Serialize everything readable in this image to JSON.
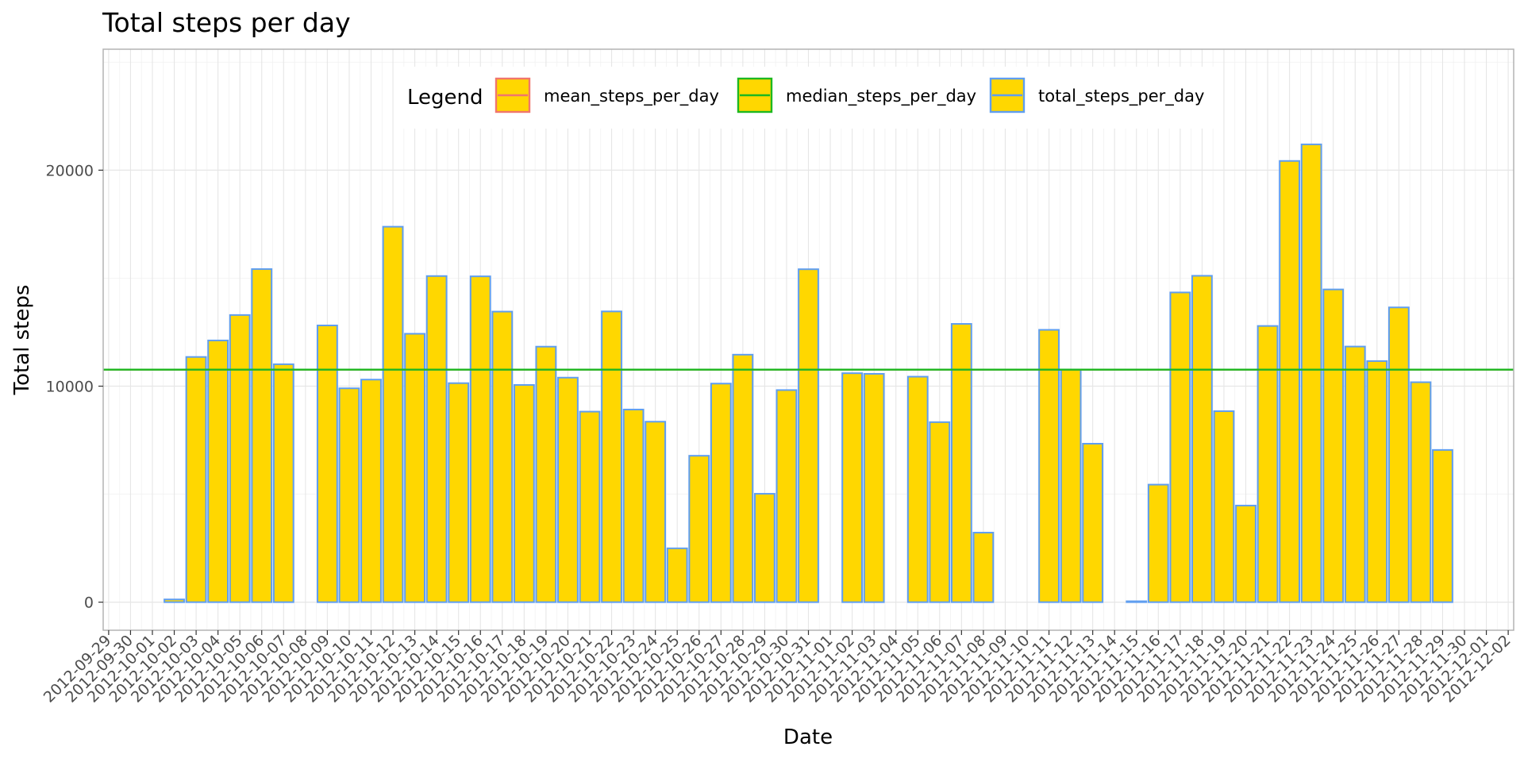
{
  "chart_data": {
    "type": "bar",
    "title": "Total steps per day",
    "xlabel": "Date",
    "ylabel": "Total steps",
    "ylim": [
      -1300,
      25600
    ],
    "yticks": [
      0,
      10000,
      20000
    ],
    "grid": true,
    "legend_position": "top",
    "x_tick_labels": [
      "2012-09-29",
      "2012-09-30",
      "2012-10-01",
      "2012-10-02",
      "2012-10-03",
      "2012-10-04",
      "2012-10-05",
      "2012-10-06",
      "2012-10-07",
      "2012-10-08",
      "2012-10-09",
      "2012-10-10",
      "2012-10-11",
      "2012-10-12",
      "2012-10-13",
      "2012-10-14",
      "2012-10-15",
      "2012-10-16",
      "2012-10-17",
      "2012-10-18",
      "2012-10-19",
      "2012-10-20",
      "2012-10-21",
      "2012-10-22",
      "2012-10-23",
      "2012-10-24",
      "2012-10-25",
      "2012-10-26",
      "2012-10-27",
      "2012-10-28",
      "2012-10-29",
      "2012-10-30",
      "2012-10-31",
      "2012-11-01",
      "2012-11-02",
      "2012-11-03",
      "2012-11-04",
      "2012-11-05",
      "2012-11-06",
      "2012-11-07",
      "2012-11-08",
      "2012-11-09",
      "2012-11-10",
      "2012-11-11",
      "2012-11-12",
      "2012-11-13",
      "2012-11-14",
      "2012-11-15",
      "2012-11-16",
      "2012-11-17",
      "2012-11-18",
      "2012-11-19",
      "2012-11-20",
      "2012-11-21",
      "2012-11-22",
      "2012-11-23",
      "2012-11-24",
      "2012-11-25",
      "2012-11-26",
      "2012-11-27",
      "2012-11-28",
      "2012-11-29",
      "2012-11-30",
      "2012-12-01",
      "2012-12-02"
    ],
    "categories": [
      "2012-10-02",
      "2012-10-03",
      "2012-10-04",
      "2012-10-05",
      "2012-10-06",
      "2012-10-07",
      "2012-10-09",
      "2012-10-10",
      "2012-10-11",
      "2012-10-12",
      "2012-10-13",
      "2012-10-14",
      "2012-10-15",
      "2012-10-16",
      "2012-10-17",
      "2012-10-18",
      "2012-10-19",
      "2012-10-20",
      "2012-10-21",
      "2012-10-22",
      "2012-10-23",
      "2012-10-24",
      "2012-10-25",
      "2012-10-26",
      "2012-10-27",
      "2012-10-28",
      "2012-10-29",
      "2012-10-30",
      "2012-10-31",
      "2012-11-02",
      "2012-11-03",
      "2012-11-05",
      "2012-11-06",
      "2012-11-07",
      "2012-11-08",
      "2012-11-11",
      "2012-11-12",
      "2012-11-13",
      "2012-11-15",
      "2012-11-16",
      "2012-11-17",
      "2012-11-18",
      "2012-11-19",
      "2012-11-20",
      "2012-11-21",
      "2012-11-22",
      "2012-11-23",
      "2012-11-24",
      "2012-11-25",
      "2012-11-26",
      "2012-11-27",
      "2012-11-28",
      "2012-11-29"
    ],
    "series": [
      {
        "name": "total_steps_per_day",
        "values": [
          126,
          11352,
          12116,
          13294,
          15420,
          11015,
          12811,
          9900,
          10304,
          17382,
          12426,
          15098,
          10139,
          15084,
          13452,
          10056,
          11829,
          10395,
          8821,
          13460,
          8918,
          8355,
          2492,
          6778,
          10119,
          11458,
          5018,
          9819,
          15414,
          10600,
          10571,
          10439,
          8334,
          12883,
          3219,
          12608,
          10765,
          7336,
          41,
          5441,
          14339,
          15110,
          8841,
          4472,
          12787,
          20427,
          21194,
          14478,
          11834,
          11162,
          13646,
          10183,
          7047
        ],
        "fill": "#FFD700",
        "stroke": "#5F9EF0"
      }
    ],
    "reference_lines": [
      {
        "name": "mean_steps_per_day",
        "value": 10766,
        "color": "#F0766D"
      },
      {
        "name": "median_steps_per_day",
        "value": 10765,
        "color": "#1DB820"
      }
    ],
    "legend": {
      "title": "Legend",
      "items": [
        {
          "label": "mean_steps_per_day",
          "color": "#F0766D"
        },
        {
          "label": "median_steps_per_day",
          "color": "#1DB820"
        },
        {
          "label": "total_steps_per_day",
          "color": "#5F9EF0"
        }
      ]
    }
  }
}
